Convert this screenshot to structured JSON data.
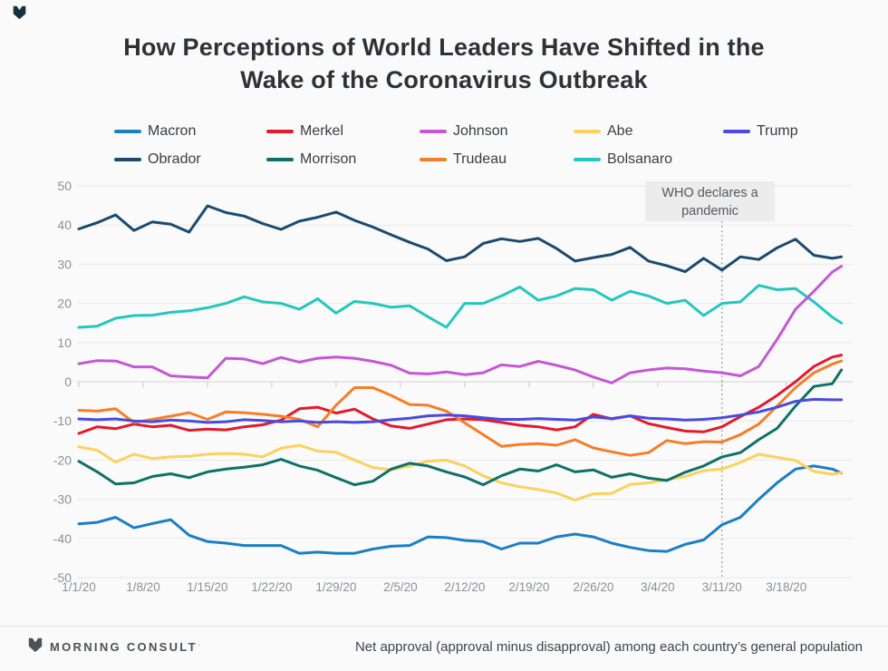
{
  "title": {
    "line1": "How Perceptions of World Leaders Have Shifted in the",
    "line2": "Wake of the Coronavirus Outbreak"
  },
  "annotation": {
    "line1": "WHO declares a",
    "line2": "pandemic",
    "day": 70
  },
  "footer": {
    "logo_text": "MORNING CONSULT",
    "logo_reg": "’",
    "note": "Net approval (approval minus disapproval) among each country’s general population"
  },
  "colors": {
    "background": "#fafafa",
    "grid": "#e7e7e7",
    "zero_line": "#d4d4d4",
    "tick": "#c4c7ca",
    "axis_label": "#8b9095",
    "dashed_line": "#8c8c8c",
    "annotation_bg": "#ececec",
    "annotation_text": "#55595e"
  },
  "chart_data": {
    "type": "line",
    "title": "How Perceptions of World Leaders Have Shifted in the Wake of the Coronavirus Outbreak",
    "xlabel": "",
    "ylabel": "Net approval",
    "ylim": [
      -50,
      50
    ],
    "grid": "horizontal",
    "legend_position": "top",
    "y_ticks": [
      50,
      40,
      30,
      20,
      10,
      0,
      -10,
      -20,
      -30,
      -40,
      -50
    ],
    "x_tick_labels": [
      "1/1/20",
      "1/8/20",
      "1/15/20",
      "1/22/20",
      "1/29/20",
      "2/5/20",
      "2/12/20",
      "2/19/20",
      "2/26/20",
      "3/4/20",
      "3/11/20",
      "3/18/20"
    ],
    "x_tick_days": [
      0,
      7,
      14,
      21,
      28,
      35,
      42,
      49,
      56,
      63,
      70,
      77
    ],
    "annotation_line_day": 70,
    "sample_days": [
      0,
      2,
      4,
      6,
      8,
      10,
      12,
      14,
      16,
      18,
      20,
      22,
      24,
      26,
      28,
      30,
      32,
      34,
      36,
      38,
      40,
      42,
      44,
      46,
      48,
      50,
      52,
      54,
      56,
      58,
      60,
      62,
      64,
      66,
      68,
      70,
      72,
      74,
      76,
      78,
      80,
      82,
      83
    ],
    "series": [
      {
        "name": "Macron",
        "color": "#1b7fc4",
        "values": [
          -36.3,
          -35.9,
          -34.6,
          -37.3,
          -36.2,
          -35.2,
          -39.2,
          -40.8,
          -41.2,
          -41.8,
          -41.8,
          -41.8,
          -43.8,
          -43.5,
          -43.8,
          -43.8,
          -42.7,
          -42.0,
          -41.8,
          -39.6,
          -39.8,
          -40.5,
          -40.8,
          -42.7,
          -41.2,
          -41.2,
          -39.6,
          -38.9,
          -39.6,
          -41.2,
          -42.3,
          -43.1,
          -43.3,
          -41.5,
          -40.4,
          -36.5,
          -34.6,
          -30.0,
          -25.8,
          -22.3,
          -21.5,
          -22.3,
          -23.3
        ]
      },
      {
        "name": "Merkel",
        "color": "#e11b2d",
        "values": [
          -13.2,
          -11.5,
          -12.0,
          -10.8,
          -11.5,
          -11.1,
          -12.4,
          -12.1,
          -12.3,
          -11.5,
          -11.0,
          -9.8,
          -6.9,
          -6.5,
          -8.0,
          -7.0,
          -9.5,
          -11.3,
          -11.9,
          -10.8,
          -9.7,
          -9.5,
          -9.7,
          -10.4,
          -11.1,
          -11.5,
          -12.3,
          -11.5,
          -8.3,
          -9.5,
          -8.7,
          -10.7,
          -11.7,
          -12.6,
          -12.8,
          -11.5,
          -8.9,
          -6.5,
          -3.5,
          0.0,
          3.9,
          6.3,
          6.8
        ]
      },
      {
        "name": "Johnson",
        "color": "#c457d6",
        "values": [
          4.6,
          5.4,
          5.3,
          3.8,
          3.8,
          1.5,
          1.2,
          1.0,
          6.0,
          5.8,
          4.6,
          6.2,
          5.0,
          6.0,
          6.3,
          6.0,
          5.2,
          4.2,
          2.2,
          2.0,
          2.5,
          1.8,
          2.3,
          4.3,
          3.9,
          5.2,
          4.2,
          3.0,
          1.2,
          -0.3,
          2.3,
          3.0,
          3.5,
          3.3,
          2.7,
          2.3,
          1.5,
          3.9,
          10.8,
          18.5,
          23.1,
          28.0,
          29.5
        ]
      },
      {
        "name": "Abe",
        "color": "#fbd25c",
        "values": [
          -16.6,
          -17.5,
          -20.5,
          -18.5,
          -19.6,
          -19.2,
          -19.0,
          -18.5,
          -18.3,
          -18.5,
          -19.2,
          -17.0,
          -16.2,
          -17.7,
          -18.0,
          -20.0,
          -21.9,
          -22.5,
          -21.5,
          -20.3,
          -20.0,
          -21.5,
          -24.0,
          -25.8,
          -26.8,
          -27.5,
          -28.4,
          -30.2,
          -28.6,
          -28.5,
          -26.2,
          -25.8,
          -25.0,
          -24.2,
          -22.7,
          -22.3,
          -20.6,
          -18.5,
          -19.3,
          -20.1,
          -22.9,
          -23.6,
          -23.2
        ]
      },
      {
        "name": "Trump",
        "color": "#4a4ae0",
        "values": [
          -9.5,
          -9.7,
          -9.5,
          -10.0,
          -10.2,
          -9.8,
          -10.0,
          -10.4,
          -10.2,
          -9.7,
          -9.9,
          -10.2,
          -10.0,
          -10.4,
          -10.2,
          -10.4,
          -10.2,
          -9.7,
          -9.3,
          -8.7,
          -8.5,
          -8.7,
          -9.2,
          -9.6,
          -9.6,
          -9.4,
          -9.6,
          -9.8,
          -9.0,
          -9.4,
          -8.7,
          -9.3,
          -9.5,
          -9.8,
          -9.6,
          -9.2,
          -8.5,
          -7.7,
          -6.5,
          -5.0,
          -4.5,
          -4.6,
          -4.6
        ]
      },
      {
        "name": "Obrador",
        "color": "#1b4a70",
        "values": [
          39.0,
          40.6,
          42.6,
          38.6,
          40.8,
          40.2,
          38.2,
          44.9,
          43.2,
          42.3,
          40.4,
          38.9,
          41.0,
          42.0,
          43.3,
          41.2,
          39.5,
          37.5,
          35.6,
          33.9,
          30.9,
          31.9,
          35.3,
          36.5,
          35.8,
          36.6,
          34.0,
          30.8,
          31.7,
          32.5,
          34.3,
          30.8,
          29.6,
          28.1,
          31.5,
          28.5,
          31.9,
          31.2,
          34.2,
          36.4,
          32.3,
          31.5,
          31.9
        ]
      },
      {
        "name": "Morrison",
        "color": "#0e7169",
        "values": [
          -20.3,
          -23.0,
          -26.1,
          -25.8,
          -24.2,
          -23.5,
          -24.5,
          -23.0,
          -22.3,
          -21.8,
          -21.2,
          -19.8,
          -21.5,
          -22.6,
          -24.5,
          -26.3,
          -25.4,
          -22.3,
          -20.8,
          -21.5,
          -23.0,
          -24.3,
          -26.3,
          -24.0,
          -22.3,
          -22.8,
          -21.2,
          -23.0,
          -22.5,
          -24.4,
          -23.5,
          -24.6,
          -25.2,
          -23.1,
          -21.5,
          -19.2,
          -18.1,
          -14.8,
          -11.9,
          -6.2,
          -1.2,
          -0.5,
          3.0
        ]
      },
      {
        "name": "Trudeau",
        "color": "#f57e27",
        "values": [
          -7.3,
          -7.5,
          -6.9,
          -10.4,
          -9.6,
          -8.8,
          -7.9,
          -9.6,
          -7.7,
          -7.9,
          -8.3,
          -8.8,
          -9.6,
          -11.5,
          -6.0,
          -1.5,
          -1.5,
          -3.5,
          -5.8,
          -6.0,
          -7.5,
          -10.5,
          -13.5,
          -16.5,
          -16.0,
          -15.8,
          -16.2,
          -14.8,
          -16.9,
          -17.9,
          -18.8,
          -18.1,
          -15.0,
          -15.8,
          -15.3,
          -15.4,
          -13.5,
          -10.8,
          -6.2,
          -1.5,
          2.3,
          4.5,
          5.3
        ]
      },
      {
        "name": "Bolsanaro",
        "color": "#24c7c0",
        "values": [
          13.9,
          14.2,
          16.2,
          16.9,
          17.0,
          17.7,
          18.1,
          18.9,
          20.0,
          21.7,
          20.4,
          20.0,
          18.5,
          21.2,
          17.5,
          20.5,
          20.0,
          19.0,
          19.4,
          16.6,
          13.9,
          20.0,
          20.0,
          21.9,
          24.2,
          20.8,
          21.9,
          23.8,
          23.5,
          20.8,
          23.1,
          21.9,
          20.0,
          20.8,
          16.9,
          20.0,
          20.4,
          24.6,
          23.5,
          23.8,
          20.4,
          16.5,
          15.0
        ]
      }
    ]
  }
}
